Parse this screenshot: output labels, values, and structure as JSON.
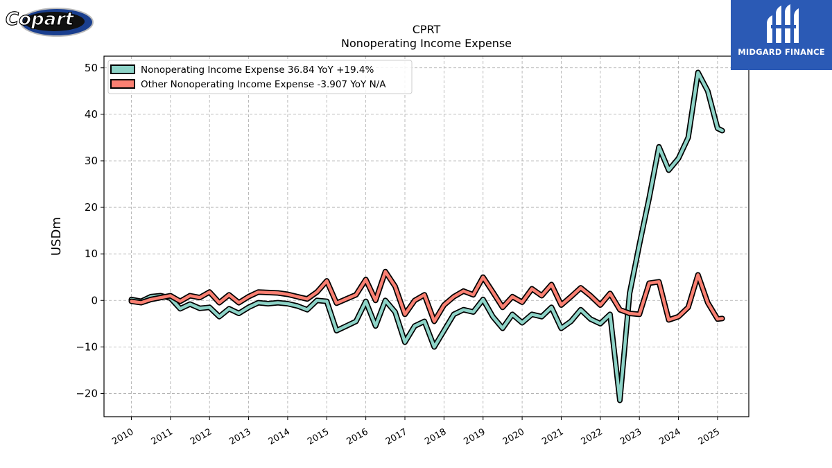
{
  "brand": {
    "left_logo_text": "Copart",
    "right_logo_text": "MIDGARD FINANCE"
  },
  "colors": {
    "series1": "#8dd3c7",
    "series2": "#fa8072",
    "brand_blue": "#2b5ab5"
  },
  "chart_data": {
    "type": "line",
    "title": "CPRT",
    "subtitle": "Nonoperating Income Expense",
    "ylabel": "USDm",
    "xlabel": "",
    "ylim": [
      -25,
      52.5
    ],
    "xlim": [
      2009.3,
      2025.8
    ],
    "yticks": [
      -20,
      -10,
      0,
      10,
      20,
      30,
      40,
      50
    ],
    "ytick_labels": [
      "−20",
      "−10",
      "0",
      "10",
      "20",
      "30",
      "40",
      "50"
    ],
    "xticks": [
      2010,
      2011,
      2012,
      2013,
      2014,
      2015,
      2016,
      2017,
      2018,
      2019,
      2020,
      2021,
      2022,
      2023,
      2024,
      2025
    ],
    "xtick_labels": [
      "2010",
      "2011",
      "2012",
      "2013",
      "2014",
      "2015",
      "2016",
      "2017",
      "2018",
      "2019",
      "2020",
      "2021",
      "2022",
      "2023",
      "2024",
      "2025"
    ],
    "grid": true,
    "legend_position": "top-left",
    "series": [
      {
        "name": "Nonoperating Income Expense  36.84 YoY +19.4%",
        "color": "#8dd3c7",
        "x": [
          2010.0,
          2010.25,
          2010.5,
          2010.75,
          2011.0,
          2011.25,
          2011.5,
          2011.75,
          2012.0,
          2012.25,
          2012.5,
          2012.75,
          2013.0,
          2013.25,
          2013.5,
          2013.75,
          2014.0,
          2014.25,
          2014.5,
          2014.75,
          2015.0,
          2015.25,
          2015.5,
          2015.75,
          2016.0,
          2016.25,
          2016.5,
          2016.75,
          2017.0,
          2017.25,
          2017.5,
          2017.75,
          2018.0,
          2018.25,
          2018.5,
          2018.75,
          2019.0,
          2019.25,
          2019.5,
          2019.75,
          2020.0,
          2020.25,
          2020.5,
          2020.75,
          2021.0,
          2021.25,
          2021.5,
          2021.75,
          2022.0,
          2022.25,
          2022.5,
          2022.75,
          2023.0,
          2023.25,
          2023.5,
          2023.75,
          2024.0,
          2024.25,
          2024.5,
          2024.75,
          2025.0,
          2025.12
        ],
        "y": [
          0.2,
          -0.2,
          0.8,
          1.0,
          0.5,
          -1.8,
          -0.8,
          -1.7,
          -1.5,
          -3.5,
          -1.8,
          -2.8,
          -1.5,
          -0.5,
          -0.7,
          -0.5,
          -0.7,
          -1.2,
          -2.0,
          0.0,
          -0.2,
          -6.5,
          -5.5,
          -4.5,
          -0.2,
          -5.5,
          0.0,
          -2.5,
          -9.0,
          -5.5,
          -4.5,
          -10.0,
          -6.5,
          -3.0,
          -2.0,
          -2.5,
          0.2,
          -3.5,
          -6.0,
          -3.0,
          -4.8,
          -3.0,
          -3.5,
          -1.5,
          -6.0,
          -4.5,
          -2.0,
          -4.0,
          -5.0,
          -3.0,
          -21.5,
          1.5,
          12.0,
          22.0,
          33.0,
          28.0,
          30.5,
          35.0,
          49.0,
          45.0,
          37.0,
          36.5
        ]
      },
      {
        "name": "Other Nonoperating Income Expense  -3.907 YoY N/A",
        "color": "#fa8072",
        "x": [
          2010.0,
          2010.25,
          2010.5,
          2010.75,
          2011.0,
          2011.25,
          2011.5,
          2011.75,
          2012.0,
          2012.25,
          2012.5,
          2012.75,
          2013.0,
          2013.25,
          2013.5,
          2013.75,
          2014.0,
          2014.25,
          2014.5,
          2014.75,
          2015.0,
          2015.25,
          2015.5,
          2015.75,
          2016.0,
          2016.25,
          2016.5,
          2016.75,
          2017.0,
          2017.25,
          2017.5,
          2017.75,
          2018.0,
          2018.25,
          2018.5,
          2018.75,
          2019.0,
          2019.25,
          2019.5,
          2019.75,
          2020.0,
          2020.25,
          2020.5,
          2020.75,
          2021.0,
          2021.25,
          2021.5,
          2021.75,
          2022.0,
          2022.25,
          2022.5,
          2022.75,
          2023.0,
          2023.25,
          2023.5,
          2023.75,
          2024.0,
          2024.25,
          2024.5,
          2024.75,
          2025.0,
          2025.12
        ],
        "y": [
          -0.2,
          -0.5,
          0.2,
          0.6,
          1.0,
          -0.2,
          1.0,
          0.6,
          1.8,
          -0.5,
          1.2,
          -0.5,
          0.8,
          1.8,
          1.7,
          1.6,
          1.3,
          0.8,
          0.3,
          1.8,
          4.2,
          -0.6,
          0.3,
          1.2,
          4.5,
          0.0,
          6.2,
          3.0,
          -3.0,
          0.0,
          1.2,
          -4.5,
          -1.0,
          0.8,
          2.0,
          1.2,
          5.0,
          1.8,
          -1.5,
          0.8,
          -0.4,
          2.5,
          1.0,
          3.4,
          -1.0,
          0.8,
          2.7,
          1.0,
          -1.0,
          1.5,
          -2.0,
          -2.8,
          -3.0,
          3.7,
          4.0,
          -4.2,
          -3.5,
          -1.5,
          5.5,
          -0.5,
          -4.0,
          -3.9
        ]
      }
    ]
  }
}
